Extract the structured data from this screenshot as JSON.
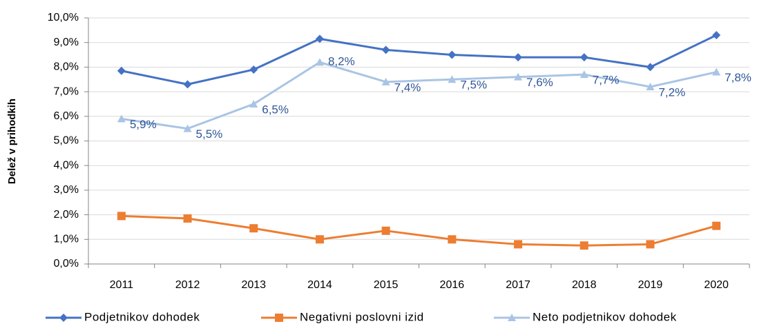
{
  "chart_data": {
    "type": "line",
    "y_label": "Delež v prihodkih",
    "categories": [
      "2011",
      "2012",
      "2013",
      "2014",
      "2015",
      "2016",
      "2017",
      "2018",
      "2019",
      "2020"
    ],
    "series": [
      {
        "name": "Podjetnikov dohodek",
        "color": "#4472c4",
        "marker": "diamond",
        "values": [
          7.85,
          7.3,
          7.9,
          9.15,
          8.7,
          8.5,
          8.4,
          8.4,
          8.0,
          9.3
        ]
      },
      {
        "name": "Negativni poslovni izid",
        "color": "#ed7d31",
        "marker": "square",
        "values": [
          1.95,
          1.85,
          1.45,
          1.0,
          1.35,
          1.0,
          0.8,
          0.75,
          0.8,
          1.55
        ]
      },
      {
        "name": "Neto podjetnikov dohodek",
        "color": "#a9c4e4",
        "marker": "triangle",
        "values": [
          5.9,
          5.5,
          6.5,
          8.2,
          7.4,
          7.5,
          7.6,
          7.7,
          7.2,
          7.8
        ],
        "value_labels": [
          "5,9%",
          "5,5%",
          "6,5%",
          "8,2%",
          "7,4%",
          "7,5%",
          "7,6%",
          "7,7%",
          "7,2%",
          "7,8%"
        ]
      }
    ],
    "ylim": [
      0,
      10
    ],
    "yticks": [
      {
        "value": 0,
        "label": "0,0%"
      },
      {
        "value": 1,
        "label": "1,0%"
      },
      {
        "value": 2,
        "label": "2,0%"
      },
      {
        "value": 3,
        "label": "3,0%"
      },
      {
        "value": 4,
        "label": "4,0%"
      },
      {
        "value": 5,
        "label": "5,0%"
      },
      {
        "value": 6,
        "label": "6,0%"
      },
      {
        "value": 7,
        "label": "7,0%"
      },
      {
        "value": 8,
        "label": "8,0%"
      },
      {
        "value": 9,
        "label": "9,0%"
      },
      {
        "value": 10,
        "label": "10,0%"
      }
    ],
    "grid": true,
    "legend": "bottom"
  }
}
